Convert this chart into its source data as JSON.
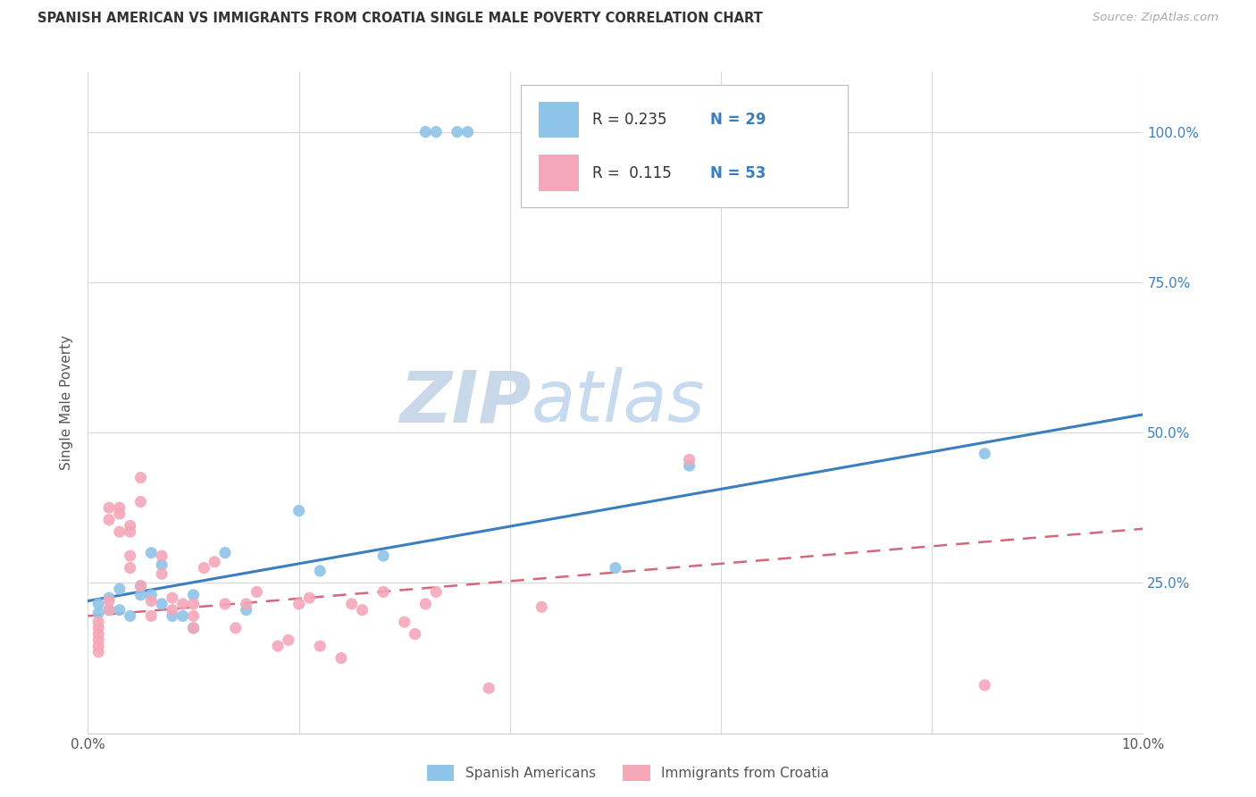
{
  "title": "SPANISH AMERICAN VS IMMIGRANTS FROM CROATIA SINGLE MALE POVERTY CORRELATION CHART",
  "source": "Source: ZipAtlas.com",
  "ylabel": "Single Male Poverty",
  "blue_R": "0.235",
  "blue_N": "29",
  "pink_R": "0.115",
  "pink_N": "53",
  "blue_color": "#8ec4e8",
  "pink_color": "#f4a7b9",
  "blue_line_color": "#3a7ec0",
  "pink_line_color": "#d4687a",
  "legend_blue_label": "Spanish Americans",
  "legend_pink_label": "Immigrants from Croatia",
  "watermark_zip": "ZIP",
  "watermark_atlas": "atlas",
  "blue_scatter_x": [
    0.032,
    0.033,
    0.035,
    0.036,
    0.001,
    0.001,
    0.002,
    0.002,
    0.003,
    0.003,
    0.004,
    0.005,
    0.005,
    0.006,
    0.006,
    0.007,
    0.007,
    0.008,
    0.009,
    0.01,
    0.01,
    0.013,
    0.015,
    0.02,
    0.022,
    0.028,
    0.05,
    0.057,
    0.085
  ],
  "blue_scatter_y": [
    1.0,
    1.0,
    1.0,
    1.0,
    0.2,
    0.215,
    0.225,
    0.205,
    0.24,
    0.205,
    0.195,
    0.23,
    0.245,
    0.23,
    0.3,
    0.28,
    0.215,
    0.195,
    0.195,
    0.23,
    0.175,
    0.3,
    0.205,
    0.37,
    0.27,
    0.295,
    0.275,
    0.445,
    0.465
  ],
  "pink_scatter_x": [
    0.001,
    0.001,
    0.001,
    0.001,
    0.001,
    0.001,
    0.002,
    0.002,
    0.002,
    0.002,
    0.003,
    0.003,
    0.003,
    0.004,
    0.004,
    0.004,
    0.004,
    0.005,
    0.005,
    0.005,
    0.006,
    0.006,
    0.007,
    0.007,
    0.008,
    0.008,
    0.009,
    0.01,
    0.01,
    0.01,
    0.011,
    0.012,
    0.013,
    0.014,
    0.015,
    0.016,
    0.018,
    0.019,
    0.02,
    0.021,
    0.022,
    0.024,
    0.025,
    0.026,
    0.028,
    0.03,
    0.031,
    0.032,
    0.033,
    0.038,
    0.043,
    0.057,
    0.085
  ],
  "pink_scatter_y": [
    0.175,
    0.185,
    0.165,
    0.155,
    0.145,
    0.135,
    0.375,
    0.355,
    0.22,
    0.205,
    0.375,
    0.365,
    0.335,
    0.345,
    0.335,
    0.295,
    0.275,
    0.425,
    0.385,
    0.245,
    0.22,
    0.195,
    0.295,
    0.265,
    0.225,
    0.205,
    0.215,
    0.195,
    0.215,
    0.175,
    0.275,
    0.285,
    0.215,
    0.175,
    0.215,
    0.235,
    0.145,
    0.155,
    0.215,
    0.225,
    0.145,
    0.125,
    0.215,
    0.205,
    0.235,
    0.185,
    0.165,
    0.215,
    0.235,
    0.075,
    0.21,
    0.455,
    0.08
  ],
  "blue_line_x0": 0.0,
  "blue_line_y0": 0.22,
  "blue_line_x1": 0.1,
  "blue_line_y1": 0.53,
  "pink_line_x0": 0.0,
  "pink_line_y0": 0.195,
  "pink_line_x1": 0.1,
  "pink_line_y1": 0.34,
  "xlim": [
    0.0,
    0.1
  ],
  "ylim": [
    0.0,
    1.1
  ],
  "xtick_positions": [
    0.0,
    0.02,
    0.04,
    0.06,
    0.08,
    0.1
  ],
  "xtick_labels": [
    "0.0%",
    "",
    "",
    "",
    "",
    "10.0%"
  ],
  "ytick_positions": [
    0.25,
    0.5,
    0.75,
    1.0
  ],
  "ytick_labels": [
    "25.0%",
    "50.0%",
    "75.0%",
    "100.0%"
  ]
}
